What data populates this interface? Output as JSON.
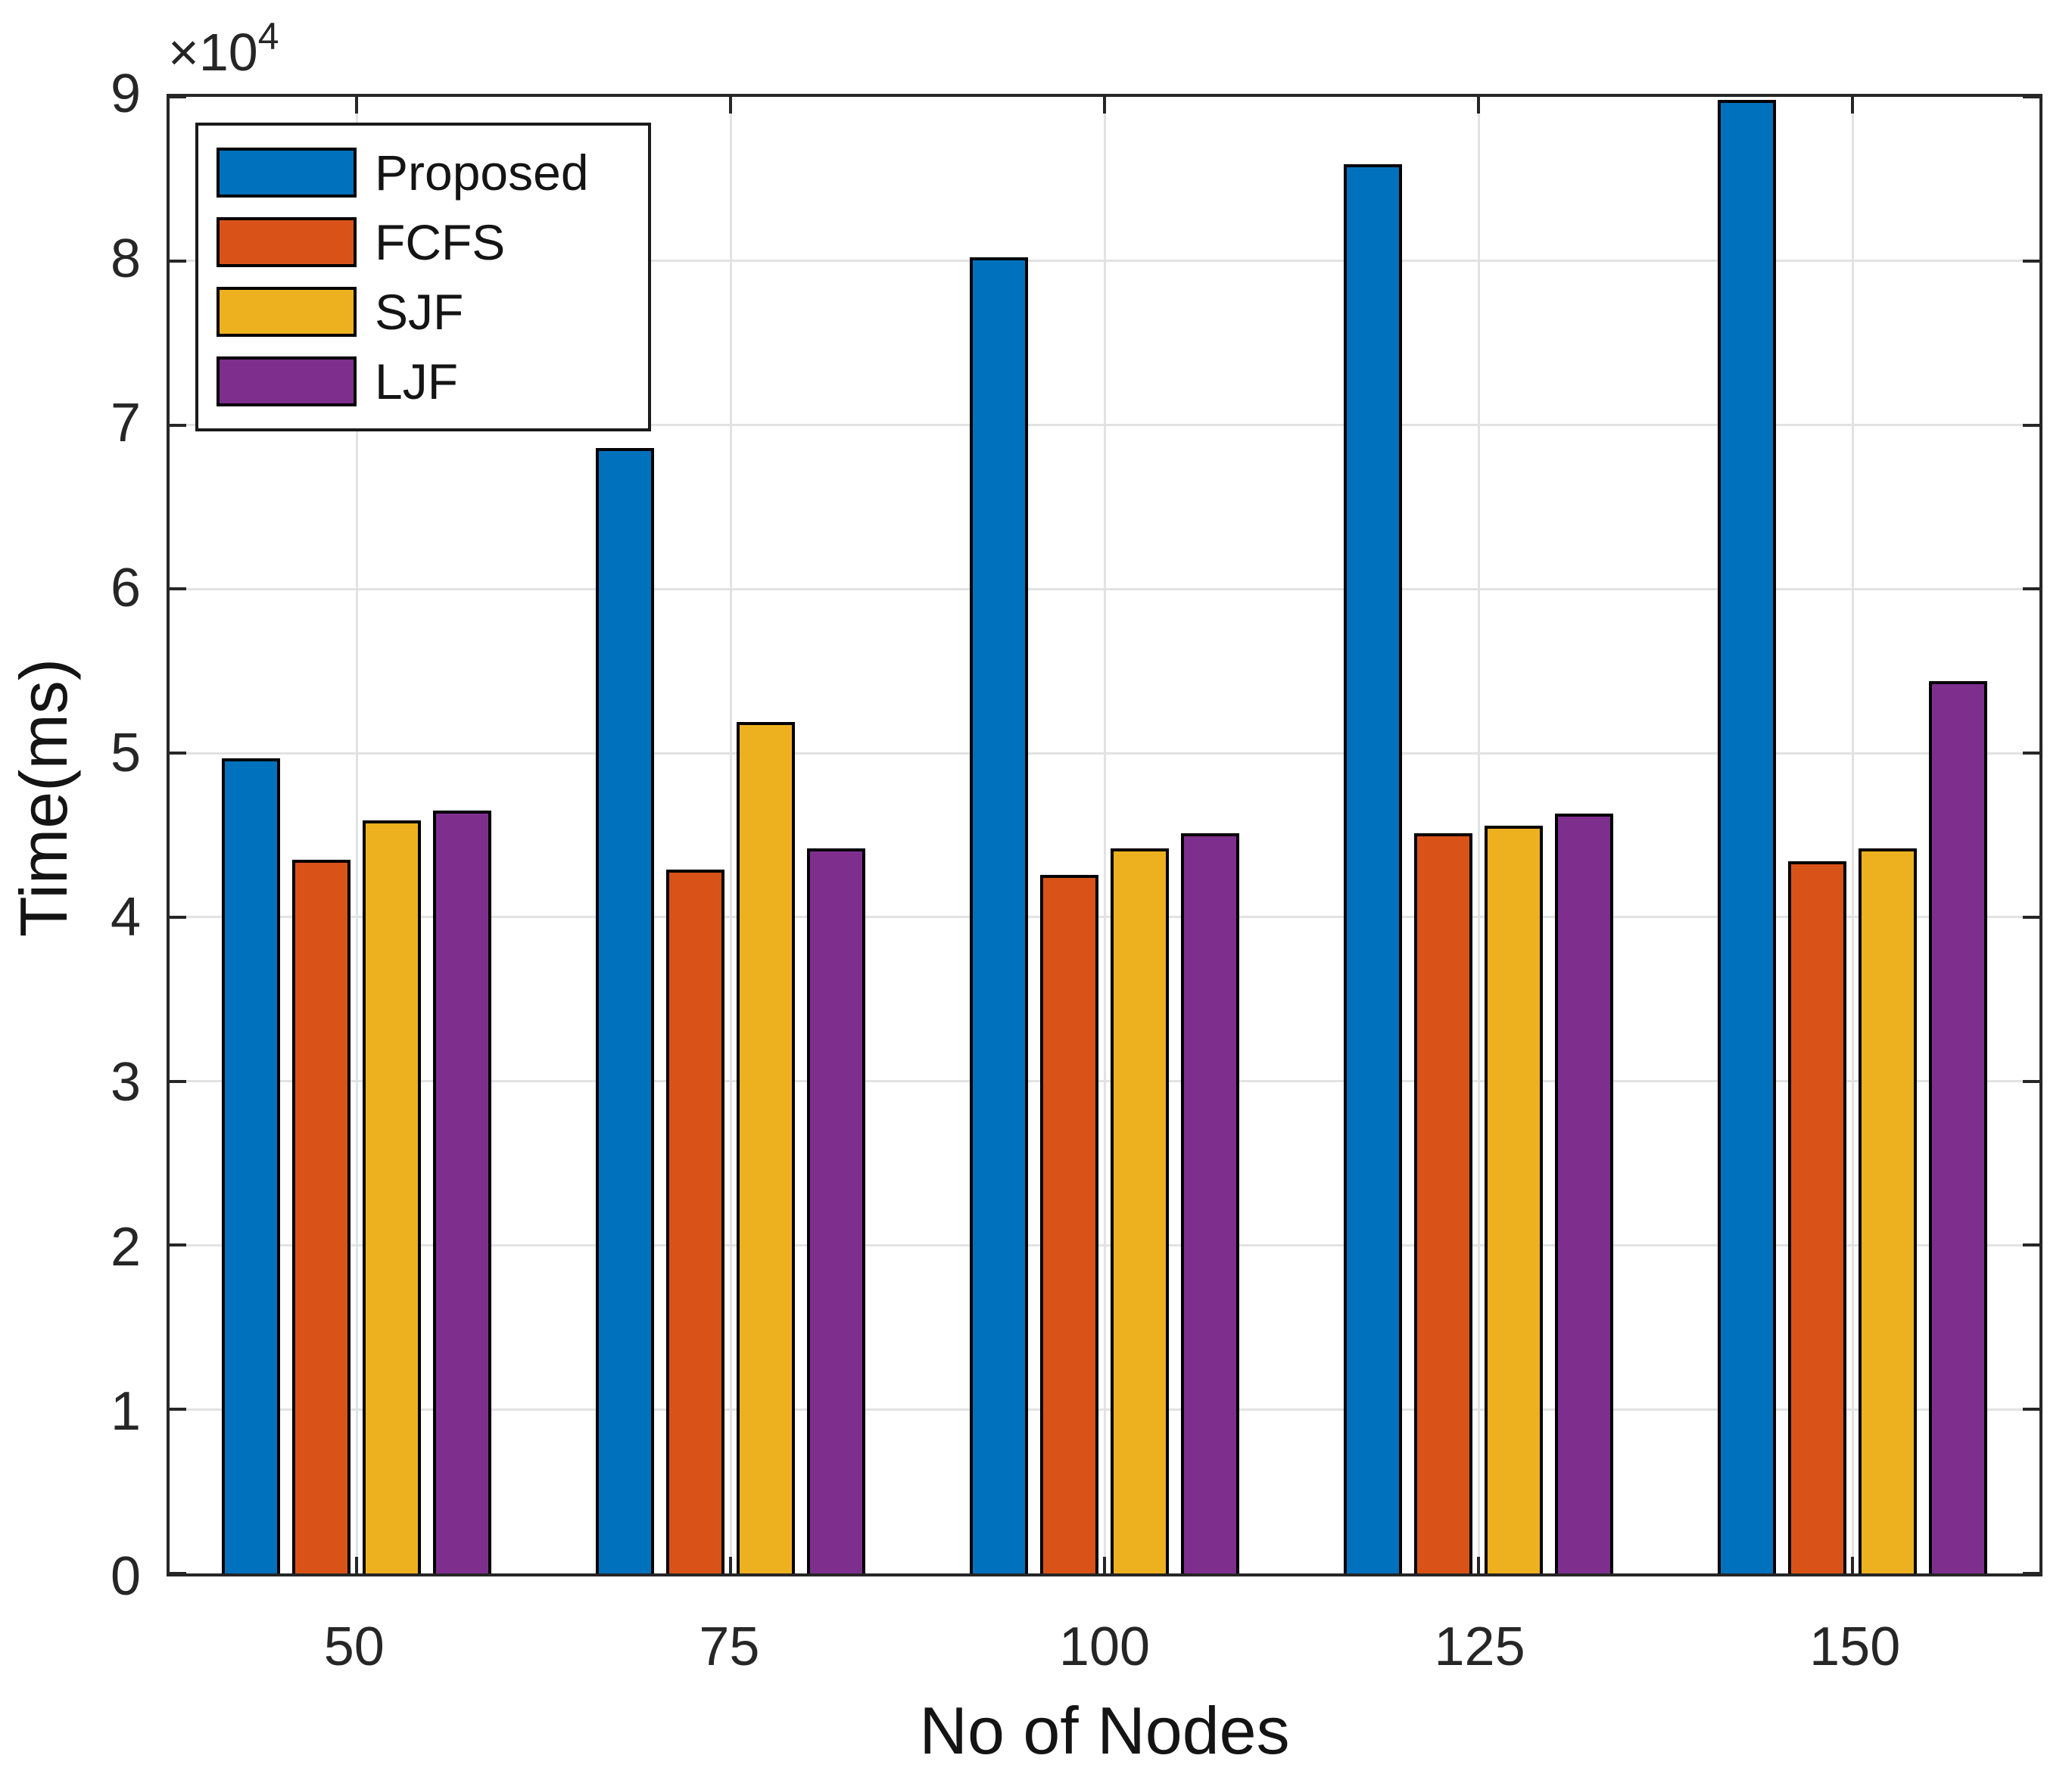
{
  "chart_data": {
    "type": "bar",
    "title": "",
    "xlabel": "No of Nodes",
    "ylabel": "Time(ms)",
    "y_axis_offset_text": "×10",
    "y_axis_offset_exponent": "4",
    "categories": [
      "50",
      "75",
      "100",
      "125",
      "150"
    ],
    "series": [
      {
        "name": "Proposed",
        "color": "#0072BD",
        "values_x1e4": [
          4.97,
          6.86,
          8.02,
          8.59,
          8.98
        ]
      },
      {
        "name": "FCFS",
        "color": "#D95319",
        "values_x1e4": [
          4.35,
          4.29,
          4.26,
          4.51,
          4.34
        ]
      },
      {
        "name": "SJF",
        "color": "#EDB120",
        "values_x1e4": [
          4.59,
          5.19,
          4.42,
          4.56,
          4.42
        ]
      },
      {
        "name": "LJF",
        "color": "#7E2F8E",
        "values_x1e4": [
          4.65,
          4.42,
          4.51,
          4.63,
          5.44
        ]
      }
    ],
    "ylim_x1e4": [
      0,
      9
    ],
    "yticks_x1e4": [
      0,
      1,
      2,
      3,
      4,
      5,
      6,
      7,
      8,
      9
    ],
    "ytick_labels": [
      "0",
      "1",
      "2",
      "3",
      "4",
      "5",
      "6",
      "7",
      "8",
      "9"
    ],
    "grid": true,
    "box_frame": true,
    "legend_position": "top-left"
  },
  "style": {
    "axis_color": "#262626",
    "grid_color": "#E2E2E2",
    "bar_edge_color": "#000000",
    "background": "#FFFFFF"
  }
}
